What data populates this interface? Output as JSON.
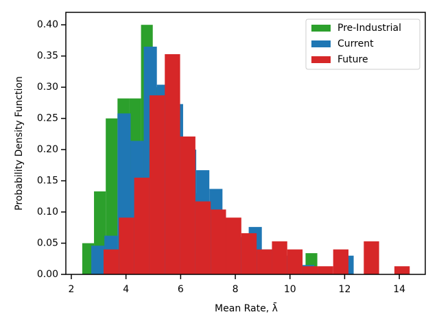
{
  "chart_data": {
    "type": "histogram",
    "xlabel": "Mean Rate, λ̄",
    "ylabel": "Probability Density Function",
    "xlim": [
      1.8,
      14.95
    ],
    "ylim": [
      0,
      0.42
    ],
    "xticks": [
      2,
      4,
      6,
      8,
      10,
      12,
      14
    ],
    "yticks": [
      {
        "value": 0,
        "label": "0.00"
      },
      {
        "value": 0.05,
        "label": "0.05"
      },
      {
        "value": 0.1,
        "label": "0.10"
      },
      {
        "value": 0.15,
        "label": "0.15"
      },
      {
        "value": 0.2,
        "label": "0.20"
      },
      {
        "value": 0.25,
        "label": "0.25"
      },
      {
        "value": 0.3,
        "label": "0.30"
      },
      {
        "value": 0.35,
        "label": "0.35"
      },
      {
        "value": 0.4,
        "label": "0.40"
      }
    ],
    "legend": "upper right",
    "series": [
      {
        "name": "Pre-Industrial",
        "color": "#2ca02c",
        "bins": [
          2.4,
          2.83,
          3.26,
          3.69,
          4.12,
          4.55,
          4.98,
          5.41,
          5.84,
          6.27,
          6.7,
          7.13,
          7.56,
          7.99,
          8.42,
          8.85,
          9.28,
          9.71,
          10.14,
          10.57,
          11.0
        ],
        "values": [
          0.05,
          0.133,
          0.25,
          0.282,
          0.282,
          0.4,
          0.3,
          0.27,
          0.2,
          0.13,
          0.1,
          0.08,
          0.06,
          0.05,
          0.03,
          0.03,
          0.02,
          0.02,
          0.01,
          0.034
        ]
      },
      {
        "name": "Current",
        "color": "#1f77b4",
        "bins": [
          2.73,
          3.21,
          3.69,
          4.17,
          4.65,
          5.13,
          5.61,
          6.09,
          6.57,
          7.05,
          7.53,
          8.01,
          8.49,
          8.97,
          9.45,
          9.93,
          10.41,
          10.89,
          11.37,
          11.85,
          12.33
        ],
        "values": [
          0.046,
          0.062,
          0.258,
          0.214,
          0.365,
          0.304,
          0.273,
          0.2,
          0.167,
          0.137,
          0.09,
          0.06,
          0.076,
          0.04,
          0.03,
          0.02,
          0.015,
          0.01,
          0,
          0.03
        ]
      },
      {
        "name": "Future",
        "color": "#d62728",
        "bins": [
          3.18,
          3.74,
          4.3,
          4.86,
          5.42,
          5.98,
          6.54,
          7.1,
          7.66,
          8.22,
          8.78,
          9.34,
          9.9,
          10.46,
          11.02,
          11.58,
          12.14,
          12.7,
          13.26,
          13.82,
          14.38
        ],
        "values": [
          0.04,
          0.091,
          0.155,
          0.287,
          0.353,
          0.221,
          0.117,
          0.104,
          0.091,
          0.066,
          0.04,
          0.053,
          0.04,
          0.013,
          0.013,
          0.04,
          0,
          0.053,
          0,
          0.013
        ]
      }
    ]
  }
}
